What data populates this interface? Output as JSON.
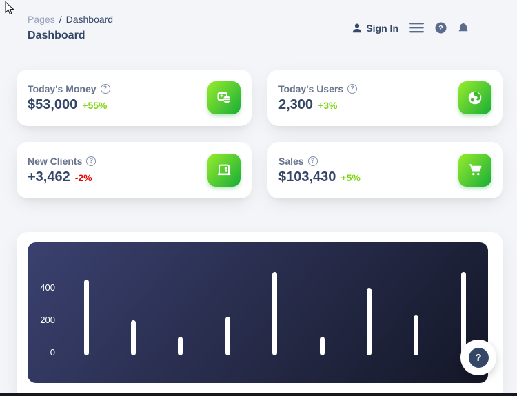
{
  "breadcrumb": {
    "section": "Pages",
    "separator": "/",
    "current": "Dashboard"
  },
  "header": {
    "page_title": "Dashboard"
  },
  "navbar": {
    "sign_in_label": "Sign In",
    "icons": [
      "user-icon",
      "menu-icon",
      "help-icon",
      "bell-icon"
    ]
  },
  "stat_cards": [
    {
      "label": "Today's Money",
      "help": "?",
      "value": "$53,000",
      "delta": "+55%",
      "delta_color": "#82d616",
      "icon": "coins-icon"
    },
    {
      "label": "Today's Users",
      "help": "?",
      "value": "2,300",
      "delta": "+3%",
      "delta_color": "#82d616",
      "icon": "globe-icon"
    },
    {
      "label": "New Clients",
      "help": "?",
      "value": "+3,462",
      "delta": "-2%",
      "delta_color": "#ea0606",
      "icon": "clients-icon"
    },
    {
      "label": "Sales",
      "help": "?",
      "value": "$103,430",
      "delta": "+5%",
      "delta_color": "#82d616",
      "icon": "cart-icon"
    }
  ],
  "chart_data": {
    "type": "bar",
    "values": [
      450,
      200,
      100,
      220,
      500,
      100,
      400,
      230,
      500
    ],
    "categories": [
      "",
      "",
      "",
      "",
      "",
      "",
      "",
      "",
      ""
    ],
    "y_ticks": [
      0,
      200,
      400
    ],
    "ylim": [
      0,
      540
    ],
    "title": "",
    "xlabel": "",
    "ylabel": "",
    "grid": false,
    "bar_color": "#ffffff",
    "background_gradient": [
      "#3a416f",
      "#141727"
    ]
  },
  "help_fab": {
    "label": "?"
  },
  "colors": {
    "accent_gradient_start": "#98ec2d",
    "accent_gradient_end": "#17ad37",
    "success_text": "#82d616",
    "danger_text": "#ea0606",
    "heading_text": "#344767",
    "muted_text": "#67748e"
  }
}
